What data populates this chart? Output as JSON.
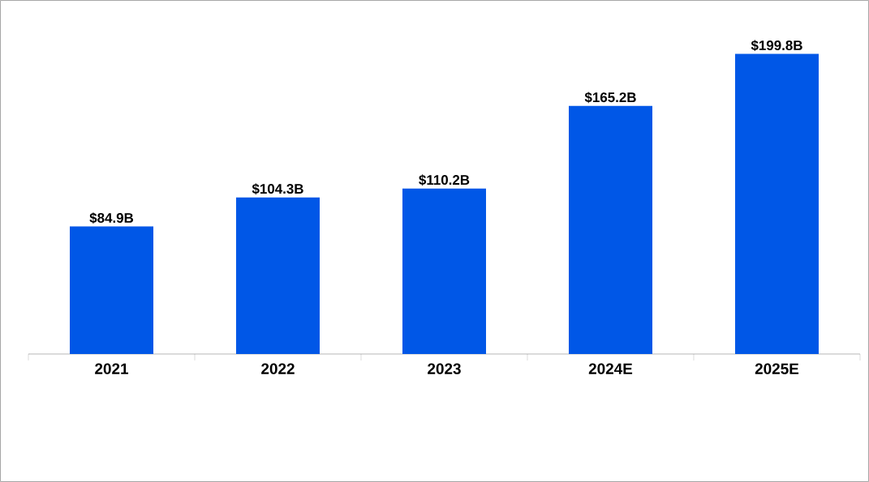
{
  "chart_data": {
    "type": "bar",
    "categories": [
      "2021",
      "2022",
      "2023",
      "2024E",
      "2025E"
    ],
    "values": [
      84.9,
      104.3,
      110.2,
      165.2,
      199.8
    ],
    "value_labels": [
      "$84.9B",
      "$104.3B",
      "$110.2B",
      "$165.2B",
      "$199.8B"
    ],
    "color": "#0057e7"
  }
}
